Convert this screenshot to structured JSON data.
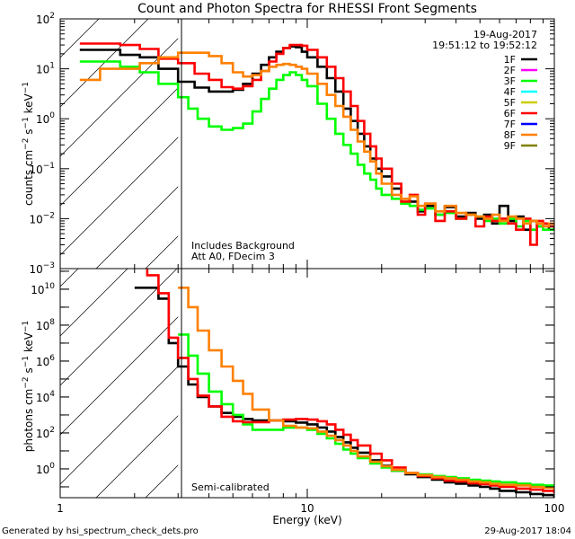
{
  "chart_data": [
    {
      "type": "line",
      "step": true,
      "title": "Count and Photon Spectra for RHESSI Front Segments",
      "panel": "top",
      "ylabel": "counts cm^-2 s^-1 keV^-1",
      "xlabel": "",
      "xscale": "log",
      "yscale": "log",
      "xlim": [
        1,
        100
      ],
      "ylim": [
        0.001,
        100
      ],
      "yticks": [
        0.001,
        0.01,
        0.1,
        1,
        10,
        100
      ],
      "ytick_labels": [
        "10^-3",
        "10^-2",
        "10^-1",
        "10^0",
        "10^1",
        "10^2"
      ],
      "annotations": [
        "Includes Background",
        "Att A0, FDecim 3"
      ],
      "legend_header": [
        "19-Aug-2017",
        "19:51:12 to 19:52:12"
      ],
      "legend_position": "top-right",
      "hatched_region_keV": [
        1,
        3
      ],
      "series": [
        {
          "name": "1F",
          "color": "#000000",
          "x": [
            1.2,
            1.45,
            1.75,
            2.1,
            2.5,
            3.0,
            3.5,
            4.0,
            4.5,
            5.0,
            5.5,
            6.0,
            6.5,
            7.0,
            7.5,
            8.0,
            8.5,
            9.0,
            9.5,
            10,
            11,
            12,
            13,
            14,
            15,
            16,
            17,
            18,
            19,
            20,
            22,
            24,
            26,
            28,
            30,
            33,
            36,
            40,
            44,
            48,
            52,
            56,
            60,
            65,
            70,
            75,
            80,
            85,
            90,
            95,
            100
          ],
          "y": [
            24,
            24,
            19,
            17,
            10,
            5.5,
            4.2,
            3.5,
            3.5,
            3.8,
            5,
            8,
            12,
            17,
            22,
            26,
            28,
            27,
            22,
            17,
            11,
            6.5,
            3.5,
            1.6,
            0.9,
            0.5,
            0.28,
            0.16,
            0.1,
            0.07,
            0.04,
            0.025,
            0.022,
            0.014,
            0.018,
            0.012,
            0.017,
            0.011,
            0.013,
            0.01,
            0.012,
            0.008,
            0.018,
            0.009,
            0.011,
            0.006,
            0.009,
            0.007,
            0.008,
            0.006,
            0.007
          ]
        },
        {
          "name": "2F",
          "color": "#ff00ff",
          "x": [],
          "y": []
        },
        {
          "name": "3F",
          "color": "#00ff00",
          "x": [
            1.2,
            1.45,
            1.75,
            2.1,
            2.5,
            3.0,
            3.3,
            3.6,
            4.0,
            4.5,
            5.0,
            5.5,
            6.0,
            6.5,
            7.0,
            7.5,
            8.0,
            8.5,
            9.0,
            9.5,
            10,
            11,
            12,
            13,
            14,
            15,
            16,
            17,
            18,
            19,
            20,
            22,
            24,
            26,
            28,
            30,
            33,
            36,
            40,
            44,
            48,
            52,
            56,
            60,
            65,
            70,
            75,
            80,
            85,
            90,
            95,
            100
          ],
          "y": [
            14,
            14,
            11,
            8.5,
            5,
            2.7,
            1.6,
            1,
            0.7,
            0.6,
            0.65,
            0.8,
            1.4,
            2.5,
            4,
            6,
            7.5,
            8.5,
            7.5,
            6,
            4.5,
            2,
            1,
            0.5,
            0.3,
            0.2,
            0.12,
            0.08,
            0.06,
            0.04,
            0.03,
            0.025,
            0.02,
            0.018,
            0.015,
            0.016,
            0.012,
            0.013,
            0.01,
            0.012,
            0.011,
            0.009,
            0.01,
            0.008,
            0.01,
            0.007,
            0.009,
            0.006,
            0.007,
            0.006,
            0.006,
            0.006
          ]
        },
        {
          "name": "4F",
          "color": "#00ffff",
          "x": [],
          "y": []
        },
        {
          "name": "5F",
          "color": "#cccc00",
          "x": [],
          "y": []
        },
        {
          "name": "6F",
          "color": "#ff0000",
          "x": [
            1.2,
            1.45,
            1.75,
            2.1,
            2.5,
            3.0,
            3.5,
            4.0,
            4.5,
            5.0,
            5.5,
            6.0,
            6.5,
            7.0,
            7.5,
            8.0,
            8.5,
            9.0,
            9.5,
            10,
            11,
            12,
            13,
            14,
            15,
            16,
            17,
            18,
            19,
            20,
            22,
            24,
            26,
            28,
            30,
            33,
            36,
            40,
            44,
            48,
            52,
            56,
            60,
            65,
            70,
            75,
            80,
            85,
            90,
            95,
            100
          ],
          "y": [
            32,
            32,
            30,
            25,
            16,
            13,
            8,
            6,
            4.3,
            4,
            4.5,
            6,
            9,
            14,
            20,
            26,
            30,
            30,
            29,
            24,
            17,
            11,
            6.5,
            3.5,
            1.8,
            0.9,
            0.5,
            0.28,
            0.16,
            0.1,
            0.05,
            0.022,
            0.03,
            0.012,
            0.02,
            0.009,
            0.014,
            0.01,
            0.012,
            0.007,
            0.011,
            0.009,
            0.01,
            0.008,
            0.006,
            0.01,
            0.003,
            0.009,
            0.008,
            0.007,
            0.008
          ]
        },
        {
          "name": "7F",
          "color": "#0000ff",
          "x": [],
          "y": []
        },
        {
          "name": "8F",
          "color": "#ff8000",
          "x": [
            1.2,
            1.45,
            1.75,
            2.1,
            2.5,
            3.0,
            3.5,
            4.0,
            4.5,
            5.0,
            5.5,
            6.0,
            6.5,
            7.0,
            7.5,
            8.0,
            8.5,
            9.0,
            9.5,
            10,
            11,
            12,
            13,
            14,
            15,
            16,
            17,
            18,
            19,
            20,
            22,
            24,
            26,
            28,
            30,
            33,
            36,
            40,
            44,
            48,
            52,
            56,
            60,
            65,
            70,
            75,
            80,
            85,
            90,
            95,
            100
          ],
          "y": [
            6,
            10,
            10,
            13,
            17,
            21,
            21,
            18,
            13,
            8.5,
            7,
            7.5,
            9,
            11,
            12,
            12.5,
            12,
            11,
            10,
            8,
            5,
            3,
            1.8,
            1.1,
            0.6,
            0.35,
            0.22,
            0.14,
            0.08,
            0.05,
            0.03,
            0.025,
            0.028,
            0.018,
            0.02,
            0.014,
            0.018,
            0.013,
            0.012,
            0.011,
            0.01,
            0.012,
            0.009,
            0.011,
            0.01,
            0.008,
            0.009,
            0.008,
            0.007,
            0.008,
            0.007
          ]
        },
        {
          "name": "9F",
          "color": "#808000",
          "x": [],
          "y": []
        }
      ]
    },
    {
      "type": "line",
      "step": true,
      "panel": "bottom",
      "ylabel": "photons cm^-2 s^-1 keV^-1",
      "xlabel": "Energy (keV)",
      "xscale": "log",
      "yscale": "log",
      "xlim": [
        1,
        100
      ],
      "ylim": [
        0.025,
        140000000000.0
      ],
      "xticks": [
        1,
        10,
        100
      ],
      "xtick_labels": [
        "1",
        "10",
        "100"
      ],
      "yticks": [
        1,
        100,
        10000,
        1000000,
        100000000,
        10000000000
      ],
      "ytick_labels": [
        "10^0",
        "10^2",
        "10^4",
        "10^6",
        "10^8",
        "10^10"
      ],
      "annotations": [
        "Semi-calibrated"
      ],
      "hatched_region_keV": [
        1,
        3
      ],
      "series": [
        {
          "name": "1F",
          "color": "#000000",
          "x": [
            2.0,
            2.25,
            2.5,
            2.75,
            3.0,
            3.3,
            3.6,
            4.0,
            4.5,
            5.0,
            5.5,
            6.0,
            7.0,
            8.0,
            9.0,
            10,
            11,
            12,
            13,
            14,
            15,
            16,
            18,
            20,
            22,
            25,
            28,
            32,
            36,
            40,
            45,
            50,
            55,
            60,
            70,
            80,
            90,
            100
          ],
          "y": [
            12000000000.0,
            12000000000.0,
            3000000000.0,
            10000000.0,
            500000.0,
            50000.0,
            10000.0,
            3000.0,
            1300.0,
            800,
            600,
            500,
            500,
            450,
            380,
            300,
            200,
            120,
            60,
            30,
            15,
            8,
            3,
            1.5,
            0.8,
            0.5,
            0.35,
            0.25,
            0.18,
            0.15,
            0.12,
            0.1,
            0.08,
            0.06,
            0.05,
            0.04,
            0.035,
            0.03
          ]
        },
        {
          "name": "3F",
          "color": "#00ff00",
          "x": [
            3.0,
            3.3,
            3.6,
            4.0,
            4.5,
            5.0,
            5.5,
            6.0,
            7.0,
            8.0,
            9.0,
            10,
            11,
            12,
            13,
            14,
            15,
            16,
            18,
            20,
            22,
            25,
            28,
            32,
            36,
            40,
            45,
            50,
            55,
            60,
            70,
            80,
            90,
            100
          ],
          "y": [
            30000000.0,
            2000000.0,
            200000.0,
            20000.0,
            4000.0,
            1000.0,
            300,
            150,
            150,
            200,
            200,
            150,
            90,
            50,
            25,
            12,
            7,
            4,
            2,
            1.2,
            0.8,
            0.6,
            0.5,
            0.4,
            0.35,
            0.3,
            0.25,
            0.22,
            0.2,
            0.18,
            0.15,
            0.13,
            0.12,
            0.1
          ]
        },
        {
          "name": "6F",
          "color": "#ff0000",
          "x": [
            2.0,
            2.25,
            2.5,
            2.75,
            3.0,
            3.3,
            3.6,
            4.0,
            4.5,
            5.0,
            5.5,
            6.0,
            7.0,
            8.0,
            9.0,
            10,
            11,
            12,
            13,
            14,
            15,
            16,
            18,
            20,
            22,
            25,
            28,
            32,
            36,
            40,
            45,
            50,
            55,
            60,
            70,
            80,
            90,
            100
          ],
          "y": [
            200000000000.0,
            60000000000.0,
            6000000000.0,
            20000000.0,
            1500000.0,
            100000.0,
            12000.0,
            3000.0,
            800,
            450,
            400,
            400,
            500,
            550,
            600,
            550,
            450,
            300,
            150,
            80,
            40,
            20,
            7,
            3,
            1.2,
            0.6,
            0.4,
            0.3,
            0.22,
            0.2,
            0.16,
            0.14,
            0.12,
            0.1,
            0.08,
            0.07,
            0.06,
            0.05
          ]
        },
        {
          "name": "8F",
          "color": "#ff8000",
          "x": [
            3.0,
            3.3,
            3.6,
            4.0,
            4.5,
            5.0,
            5.5,
            6.0,
            7.0,
            8.0,
            9.0,
            10,
            11,
            12,
            13,
            14,
            15,
            16,
            18,
            20,
            22,
            25,
            28,
            32,
            36,
            40,
            45,
            50,
            55,
            60,
            70,
            80,
            90,
            100
          ],
          "y": [
            12000000000.0,
            1000000000.0,
            50000000.0,
            4000000.0,
            500000.0,
            80000.0,
            15000.0,
            2000.0,
            500,
            250,
            200,
            180,
            120,
            70,
            40,
            20,
            10,
            5,
            2.5,
            1.4,
            0.9,
            0.6,
            0.45,
            0.35,
            0.3,
            0.25,
            0.2,
            0.18,
            0.15,
            0.13,
            0.12,
            0.1,
            0.09,
            0.08
          ]
        }
      ]
    }
  ],
  "footer": {
    "generator": "Generated by hsi_spectrum_check_dets.pro",
    "timestamp": "29-Aug-2017 18:04"
  }
}
